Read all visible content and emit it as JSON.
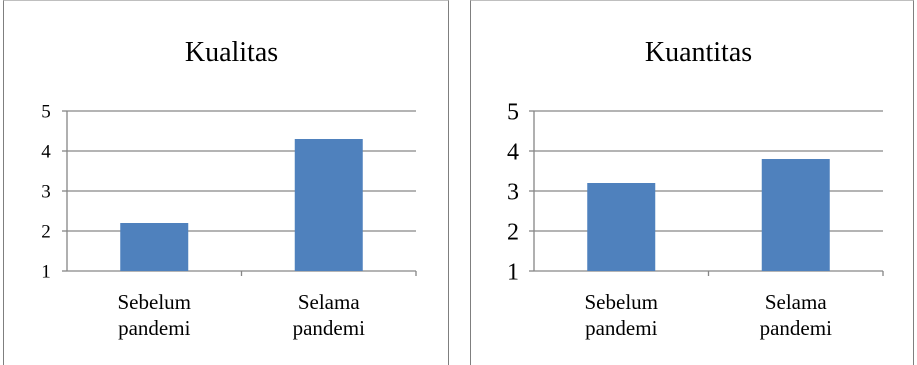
{
  "chart_data": [
    {
      "type": "bar",
      "title": "Kualitas",
      "categories": [
        [
          "Sebelum",
          "pandemi"
        ],
        [
          "Selama",
          "pandemi"
        ]
      ],
      "values": [
        2.2,
        4.3
      ],
      "ylim": [
        1,
        5
      ],
      "yticks": [
        "1",
        "2",
        "3",
        "4",
        "5"
      ],
      "grid": true,
      "legend": "none",
      "bar_color": "#4f81bd"
    },
    {
      "type": "bar",
      "title": "Kuantitas",
      "categories": [
        [
          "Sebelum",
          "pandemi"
        ],
        [
          "Selama",
          "pandemi"
        ]
      ],
      "values": [
        3.2,
        3.8
      ],
      "ylim": [
        1,
        5
      ],
      "yticks": [
        "1",
        "2",
        "3",
        "4",
        "5"
      ],
      "grid": true,
      "legend": "none",
      "bar_color": "#4f81bd"
    }
  ]
}
